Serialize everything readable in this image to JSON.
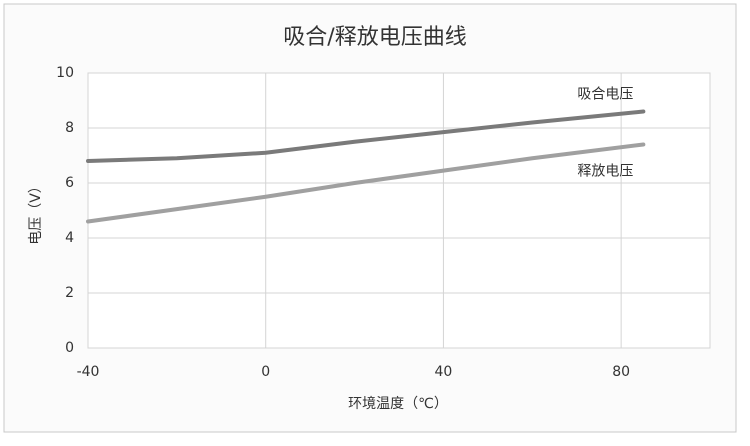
{
  "chart_data": {
    "type": "line",
    "title": "吸合/释放电压曲线",
    "x_label": "环境温度（℃）",
    "y_label": "电压（V）",
    "x": [
      -40,
      -20,
      0,
      20,
      40,
      60,
      85
    ],
    "series": [
      {
        "name": "吸合电压",
        "color": "#7a7a7a",
        "values": [
          6.8,
          6.9,
          7.1,
          7.5,
          7.85,
          8.2,
          8.6
        ]
      },
      {
        "name": "释放电压",
        "color": "#a0a0a0",
        "values": [
          4.6,
          5.05,
          5.5,
          6.0,
          6.45,
          6.9,
          7.4
        ]
      }
    ],
    "xlim": [
      -40,
      100
    ],
    "xticks": [
      -40,
      0,
      40,
      80
    ],
    "ylim": [
      0,
      10
    ],
    "yticks": [
      0,
      2,
      4,
      6,
      8,
      10
    ],
    "grid": true
  }
}
